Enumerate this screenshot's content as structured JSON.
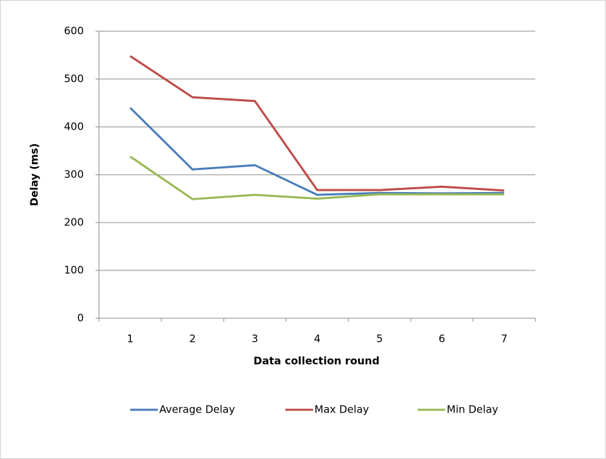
{
  "chart_data": {
    "type": "line",
    "x_label": "Data collection round",
    "y_label": "Delay (ms)",
    "categories": [
      "1",
      "2",
      "3",
      "4",
      "5",
      "6",
      "7"
    ],
    "series": [
      {
        "name": "Average Delay",
        "color": "#4a7ebb",
        "values": [
          440,
          311,
          320,
          258,
          262,
          261,
          262
        ]
      },
      {
        "name": "Max Delay",
        "color": "#be4b48",
        "values": [
          548,
          462,
          454,
          268,
          268,
          275,
          267
        ]
      },
      {
        "name": "Min Delay",
        "color": "#98b954",
        "values": [
          338,
          249,
          258,
          250,
          259,
          259,
          259
        ]
      }
    ],
    "ylim": [
      0,
      600
    ],
    "yticks": [
      0,
      100,
      200,
      300,
      400,
      500,
      600
    ],
    "grid": true,
    "legend": "bottom"
  }
}
